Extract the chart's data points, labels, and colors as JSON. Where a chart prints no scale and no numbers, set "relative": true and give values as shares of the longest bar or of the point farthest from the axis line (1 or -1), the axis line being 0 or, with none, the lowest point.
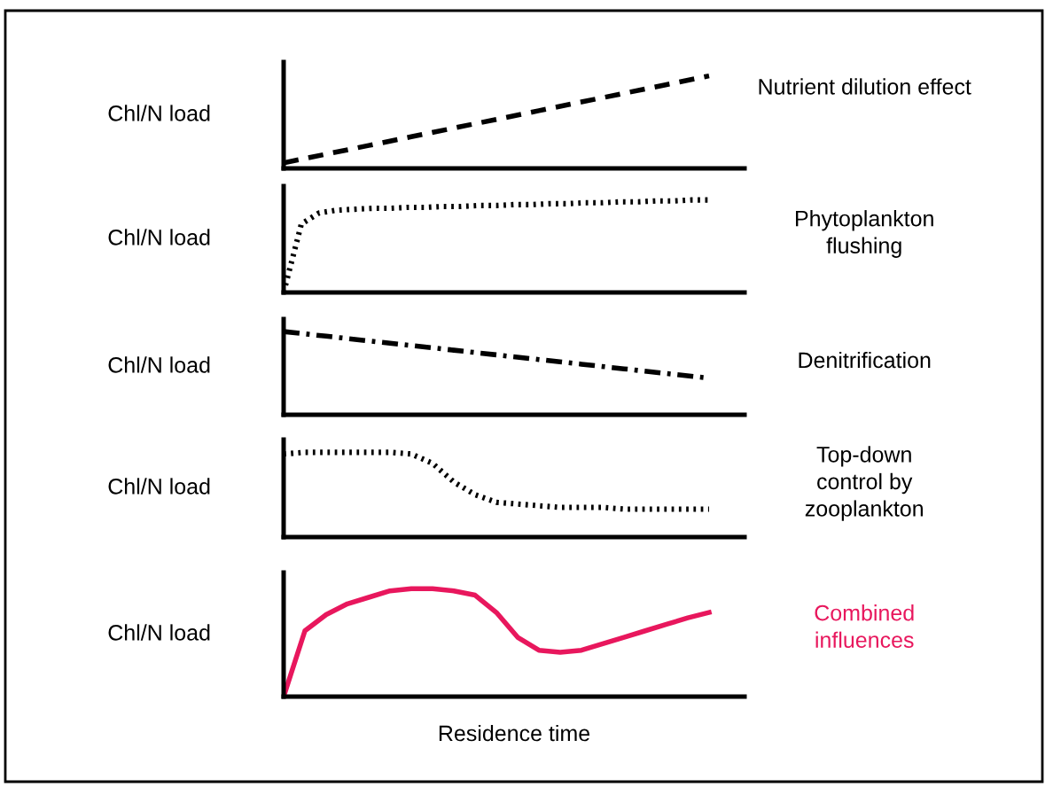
{
  "chart_data": [
    {
      "type": "line",
      "relative": true,
      "ylabel": "Chl/N load",
      "annotations": [
        "Nutrient dilution effect"
      ],
      "categories": [
        null,
        null,
        null,
        null,
        null,
        null,
        null,
        null,
        null,
        null,
        null
      ],
      "series": [
        {
          "color": "#000000",
          "line_style": "dashed",
          "values": [
            0.06,
            0.154,
            0.248,
            0.342,
            0.436,
            0.53,
            0.624,
            0.718,
            0.812,
            0.906,
            1
          ]
        }
      ]
    },
    {
      "type": "line",
      "relative": true,
      "ylabel": "Chl/N load",
      "annotations": [
        "Phytoplankton\nflushing"
      ],
      "categories": [
        null,
        null,
        null,
        null,
        null,
        null,
        null,
        null,
        null,
        null,
        null,
        null,
        null,
        null,
        null,
        null,
        null,
        null,
        null,
        null,
        null,
        null,
        null,
        null,
        null
      ],
      "series": [
        {
          "color": "#000000",
          "line_style": "dotted",
          "values": [
            0,
            0.74,
            0.86,
            0.89,
            0.9,
            0.91,
            0.91,
            0.92,
            0.92,
            0.93,
            0.93,
            0.94,
            0.94,
            0.95,
            0.95,
            0.96,
            0.96,
            0.97,
            0.97,
            0.98,
            0.98,
            0.99,
            0.99,
            1,
            1
          ]
        }
      ]
    },
    {
      "type": "line",
      "relative": true,
      "ylabel": "Chl/N load",
      "annotations": [
        "Denitrification"
      ],
      "categories": [
        null,
        null,
        null,
        null,
        null,
        null,
        null,
        null,
        null,
        null,
        null
      ],
      "series": [
        {
          "color": "#000000",
          "line_style": "dashdot",
          "values": [
            1,
            0.944,
            0.888,
            0.832,
            0.776,
            0.72,
            0.664,
            0.608,
            0.552,
            0.496,
            0.44
          ]
        }
      ]
    },
    {
      "type": "line",
      "relative": true,
      "ylabel": "Chl/N load",
      "annotations": [
        "Top-down\ncontrol by\nzooplankton"
      ],
      "categories": [
        null,
        null,
        null,
        null,
        null,
        null,
        null,
        null,
        null,
        null,
        null,
        null,
        null,
        null,
        null,
        null,
        null,
        null,
        null,
        null,
        null
      ],
      "series": [
        {
          "color": "#000000",
          "line_style": "dotted",
          "values": [
            0.98,
            1,
            1,
            1,
            1,
            1,
            0.98,
            0.87,
            0.65,
            0.5,
            0.41,
            0.39,
            0.37,
            0.35,
            0.35,
            0.35,
            0.33,
            0.33,
            0.33,
            0.33,
            0.33
          ]
        }
      ]
    },
    {
      "type": "line",
      "relative": true,
      "ylabel": "Chl/N load",
      "xlabel": "Residence time",
      "annotations": [
        "Combined\ninfluences"
      ],
      "categories": [
        null,
        null,
        null,
        null,
        null,
        null,
        null,
        null,
        null,
        null,
        null,
        null,
        null,
        null,
        null,
        null,
        null,
        null,
        null,
        null,
        null
      ],
      "series": [
        {
          "color": "#e8175d",
          "line_style": "solid",
          "values": [
            0,
            0.61,
            0.76,
            0.86,
            0.92,
            0.98,
            1,
            1,
            0.98,
            0.94,
            0.78,
            0.55,
            0.43,
            0.41,
            0.43,
            0.49,
            0.55,
            0.61,
            0.67,
            0.73,
            0.78
          ]
        }
      ]
    }
  ]
}
